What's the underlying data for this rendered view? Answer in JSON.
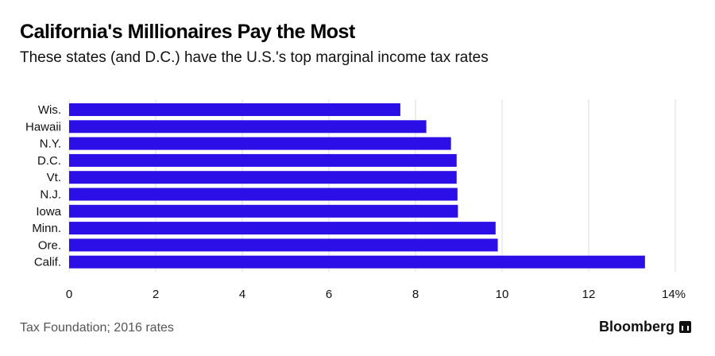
{
  "header": {
    "title": "California's Millionaires Pay the Most",
    "subtitle": "These states (and D.C.) have the U.S.'s top marginal income tax rates"
  },
  "footer": {
    "source": "Tax Foundation; 2016 rates",
    "brand": "Bloomberg"
  },
  "colors": {
    "bar": "#2b0fe6",
    "grid": "#dddddd"
  },
  "chart_data": {
    "type": "bar",
    "orientation": "horizontal",
    "title": "California's Millionaires Pay the Most",
    "subtitle": "These states (and D.C.) have the U.S.'s top marginal income tax rates",
    "categories": [
      "Wis.",
      "Hawaii",
      "N.Y.",
      "D.C.",
      "Vt.",
      "N.J.",
      "Iowa",
      "Minn.",
      "Ore.",
      "Calif."
    ],
    "values": [
      7.65,
      8.25,
      8.82,
      8.95,
      8.95,
      8.97,
      8.98,
      9.85,
      9.9,
      13.3
    ],
    "xlim": [
      0,
      14
    ],
    "xticks": [
      0,
      2,
      4,
      6,
      8,
      10,
      12,
      14
    ],
    "xtick_labels": [
      "0",
      "2",
      "4",
      "6",
      "8",
      "10",
      "12",
      "14%"
    ],
    "grid": true,
    "xlabel": "",
    "ylabel": ""
  }
}
